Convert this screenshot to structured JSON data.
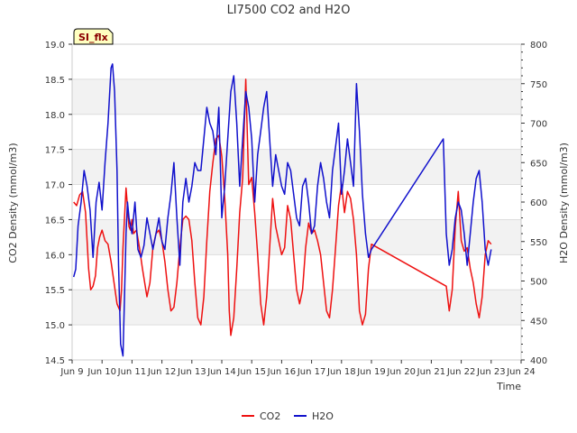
{
  "chart_data": {
    "type": "line",
    "title": "LI7500 CO2 and H2O",
    "xlabel": "Time",
    "ylabel_left": "CO2 Density (mmol/m3)",
    "ylabel_right": "H2O Density (mmol/m3)",
    "badge": "SI_flx",
    "xlim": [
      9,
      24
    ],
    "ylim_left": [
      14.5,
      19.0
    ],
    "ylim_right": [
      400,
      800
    ],
    "x_ticks": [
      {
        "v": 9,
        "label": "Jun 9"
      },
      {
        "v": 10,
        "label": "Jun 10"
      },
      {
        "v": 11,
        "label": "Jun 11"
      },
      {
        "v": 12,
        "label": "Jun 12"
      },
      {
        "v": 13,
        "label": "Jun 13"
      },
      {
        "v": 14,
        "label": "Jun 14"
      },
      {
        "v": 15,
        "label": "Jun 15"
      },
      {
        "v": 16,
        "label": "Jun 16"
      },
      {
        "v": 17,
        "label": "Jun 17"
      },
      {
        "v": 18,
        "label": "Jun 18"
      },
      {
        "v": 19,
        "label": "Jun 19"
      },
      {
        "v": 20,
        "label": "Jun 20"
      },
      {
        "v": 21,
        "label": "Jun 21"
      },
      {
        "v": 22,
        "label": "Jun 22"
      },
      {
        "v": 23,
        "label": "Jun 23"
      },
      {
        "v": 24,
        "label": "Jun 24"
      }
    ],
    "y_ticks_left": [
      "14.5",
      "15.0",
      "15.5",
      "16.0",
      "16.5",
      "17.0",
      "17.5",
      "18.0",
      "18.5",
      "19.0"
    ],
    "y_ticks_right": [
      "400",
      "450",
      "500",
      "550",
      "600",
      "650",
      "700",
      "750",
      "800"
    ],
    "series": [
      {
        "name": "CO2",
        "color": "#ee1111",
        "axis": "left",
        "x": [
          9.05,
          9.15,
          9.25,
          9.35,
          9.45,
          9.55,
          9.62,
          9.7,
          9.78,
          9.85,
          9.92,
          10.0,
          10.1,
          10.2,
          10.3,
          10.4,
          10.5,
          10.6,
          10.65,
          10.7,
          10.8,
          10.9,
          10.95,
          11.0,
          11.05,
          11.15,
          11.25,
          11.35,
          11.5,
          11.6,
          11.7,
          11.8,
          11.9,
          12.0,
          12.1,
          12.2,
          12.3,
          12.4,
          12.5,
          12.6,
          12.7,
          12.8,
          12.9,
          13.0,
          13.1,
          13.2,
          13.3,
          13.4,
          13.5,
          13.6,
          13.7,
          13.8,
          13.9,
          14.0,
          14.1,
          14.2,
          14.25,
          14.3,
          14.4,
          14.5,
          14.6,
          14.7,
          14.8,
          14.9,
          15.0,
          15.1,
          15.2,
          15.3,
          15.4,
          15.5,
          15.6,
          15.7,
          15.8,
          15.9,
          16.0,
          16.1,
          16.2,
          16.3,
          16.4,
          16.5,
          16.6,
          16.7,
          16.8,
          16.9,
          17.0,
          17.1,
          17.2,
          17.3,
          17.4,
          17.5,
          17.6,
          17.7,
          17.8,
          17.9,
          18.0,
          18.1,
          18.2,
          18.3,
          18.4,
          18.5,
          18.6,
          18.7,
          18.8,
          18.9,
          19.0,
          21.5,
          21.6,
          21.7,
          21.8,
          21.9,
          22.0,
          22.1,
          22.2,
          22.3,
          22.4,
          22.5,
          22.6,
          22.7,
          22.8,
          22.9,
          23.0
        ],
        "y": [
          16.75,
          16.7,
          16.85,
          16.9,
          16.6,
          15.8,
          15.5,
          15.55,
          15.7,
          16.1,
          16.25,
          16.35,
          16.2,
          16.15,
          15.9,
          15.6,
          15.3,
          15.2,
          15.5,
          16.1,
          16.95,
          16.4,
          16.35,
          16.5,
          16.3,
          16.35,
          16.1,
          15.8,
          15.4,
          15.6,
          16.1,
          16.3,
          16.35,
          16.2,
          15.9,
          15.5,
          15.2,
          15.25,
          15.6,
          16.1,
          16.5,
          16.55,
          16.5,
          16.2,
          15.6,
          15.1,
          15.0,
          15.4,
          16.2,
          16.9,
          17.3,
          17.65,
          17.7,
          17.4,
          16.8,
          16.0,
          15.2,
          14.85,
          15.1,
          15.8,
          16.6,
          17.1,
          18.5,
          17.0,
          17.1,
          16.6,
          16.0,
          15.3,
          15.0,
          15.4,
          16.1,
          16.8,
          16.4,
          16.2,
          16.0,
          16.1,
          16.7,
          16.5,
          16.0,
          15.5,
          15.3,
          15.5,
          16.1,
          16.45,
          16.3,
          16.35,
          16.2,
          16.0,
          15.6,
          15.2,
          15.1,
          15.5,
          16.1,
          16.7,
          17.0,
          16.6,
          16.9,
          16.8,
          16.5,
          16.0,
          15.2,
          15.0,
          15.15,
          15.8,
          16.15,
          15.55,
          15.2,
          15.5,
          16.4,
          16.9,
          16.2,
          16.05,
          16.1,
          15.8,
          15.6,
          15.3,
          15.1,
          15.4,
          16.0,
          16.2,
          16.15
        ]
      },
      {
        "name": "H2O",
        "color": "#1111cc",
        "axis": "right",
        "x": [
          9.05,
          9.12,
          9.2,
          9.3,
          9.4,
          9.5,
          9.6,
          9.7,
          9.8,
          9.9,
          10.0,
          10.1,
          10.2,
          10.3,
          10.35,
          10.42,
          10.5,
          10.55,
          10.62,
          10.7,
          10.75,
          10.8,
          10.85,
          10.9,
          11.0,
          11.1,
          11.2,
          11.3,
          11.4,
          11.5,
          11.6,
          11.7,
          11.8,
          11.9,
          12.0,
          12.1,
          12.2,
          12.3,
          12.4,
          12.5,
          12.6,
          12.7,
          12.8,
          12.9,
          13.0,
          13.1,
          13.2,
          13.3,
          13.4,
          13.5,
          13.6,
          13.7,
          13.8,
          13.9,
          14.0,
          14.1,
          14.2,
          14.3,
          14.4,
          14.5,
          14.6,
          14.7,
          14.8,
          14.9,
          15.0,
          15.1,
          15.2,
          15.3,
          15.4,
          15.5,
          15.6,
          15.7,
          15.8,
          15.9,
          16.0,
          16.1,
          16.2,
          16.3,
          16.4,
          16.5,
          16.6,
          16.7,
          16.8,
          16.9,
          17.0,
          17.1,
          17.2,
          17.3,
          17.4,
          17.5,
          17.6,
          17.7,
          17.8,
          17.9,
          18.0,
          18.1,
          18.2,
          18.3,
          18.4,
          18.5,
          18.6,
          18.7,
          18.8,
          18.9,
          19.0,
          21.4,
          21.5,
          21.6,
          21.7,
          21.8,
          21.9,
          22.0,
          22.1,
          22.2,
          22.3,
          22.4,
          22.5,
          22.6,
          22.7,
          22.8,
          22.9,
          23.0
        ],
        "y": [
          505,
          515,
          570,
          600,
          640,
          620,
          590,
          530,
          600,
          625,
          590,
          650,
          700,
          770,
          775,
          740,
          640,
          520,
          420,
          405,
          480,
          560,
          600,
          580,
          560,
          600,
          540,
          530,
          545,
          580,
          560,
          540,
          560,
          580,
          550,
          540,
          580,
          610,
          650,
          580,
          520,
          600,
          630,
          600,
          620,
          650,
          640,
          640,
          680,
          720,
          700,
          690,
          660,
          720,
          580,
          620,
          680,
          740,
          760,
          700,
          620,
          680,
          740,
          720,
          680,
          600,
          660,
          690,
          720,
          740,
          680,
          620,
          660,
          640,
          620,
          610,
          650,
          640,
          610,
          580,
          570,
          620,
          630,
          600,
          560,
          570,
          620,
          650,
          630,
          600,
          580,
          640,
          670,
          700,
          610,
          640,
          680,
          650,
          620,
          750,
          690,
          610,
          560,
          530,
          540,
          680,
          560,
          520,
          540,
          580,
          600,
          590,
          560,
          520,
          560,
          600,
          630,
          640,
          600,
          540,
          520,
          540
        ]
      }
    ],
    "legend": [
      {
        "name": "CO2",
        "color": "#ee1111"
      },
      {
        "name": "H2O",
        "color": "#1111cc"
      }
    ],
    "legend_position": "bottom-center",
    "grid": true
  }
}
